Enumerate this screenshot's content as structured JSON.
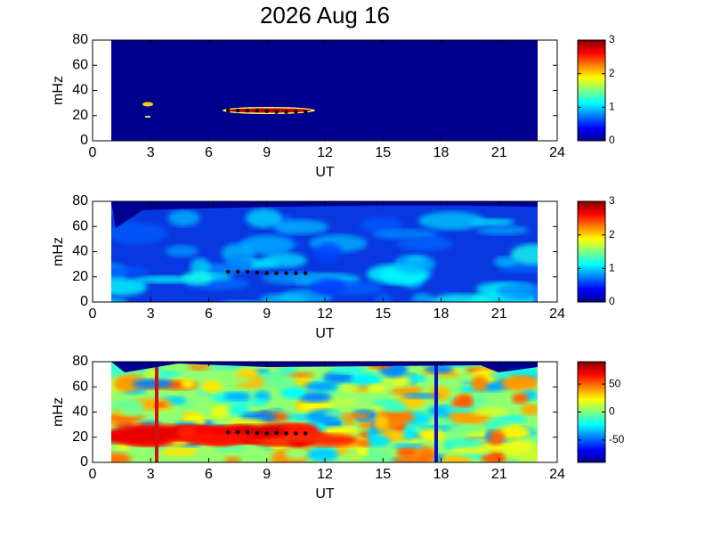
{
  "chart_data": [
    {
      "type": "heatmap",
      "title": "2026 Aug 16",
      "xlabel": "UT",
      "ylabel": "mHz",
      "xlim": [
        0,
        24
      ],
      "xticks": [
        0,
        3,
        6,
        9,
        12,
        15,
        18,
        21,
        24
      ],
      "ylim": [
        0,
        80
      ],
      "yticks": [
        0,
        20,
        40,
        60,
        80
      ],
      "clim": [
        0,
        3
      ],
      "cticks": [
        0,
        1,
        2,
        3
      ],
      "colormap": "jet",
      "marker_color": "#000000",
      "x": [
        7,
        7.5,
        8,
        8.5,
        9,
        9.5,
        10,
        10.5,
        11
      ],
      "values": [
        24,
        24,
        24,
        24,
        23.5,
        23,
        23,
        23,
        23
      ]
    },
    {
      "type": "heatmap",
      "xlabel": "UT",
      "ylabel": "mHz",
      "xlim": [
        0,
        24
      ],
      "xticks": [
        0,
        3,
        6,
        9,
        12,
        15,
        18,
        21,
        24
      ],
      "ylim": [
        0,
        80
      ],
      "yticks": [
        0,
        20,
        40,
        60,
        80
      ],
      "clim": [
        0,
        3
      ],
      "cticks": [
        0,
        1,
        2,
        3
      ],
      "colormap": "jet",
      "marker_color": "#000000",
      "x": [
        7,
        7.5,
        8,
        8.5,
        9,
        9.5,
        10,
        10.5,
        11
      ],
      "values": [
        24,
        24,
        24,
        23.5,
        23,
        23,
        23,
        23,
        23
      ]
    },
    {
      "type": "heatmap",
      "xlabel": "UT",
      "ylabel": "mHz",
      "xlim": [
        0,
        24
      ],
      "xticks": [
        0,
        3,
        6,
        9,
        12,
        15,
        18,
        21,
        24
      ],
      "ylim": [
        0,
        80
      ],
      "yticks": [
        0,
        20,
        40,
        60,
        80
      ],
      "clim": [
        -90,
        90
      ],
      "cticks": [
        -50,
        0,
        50
      ],
      "colormap": "jet",
      "marker_color": "#000000",
      "x": [
        7,
        7.5,
        8,
        8.5,
        9,
        9.5,
        10,
        10.5,
        11
      ],
      "values": [
        24,
        24,
        24,
        23.5,
        23,
        23.5,
        23,
        23,
        23
      ]
    }
  ]
}
